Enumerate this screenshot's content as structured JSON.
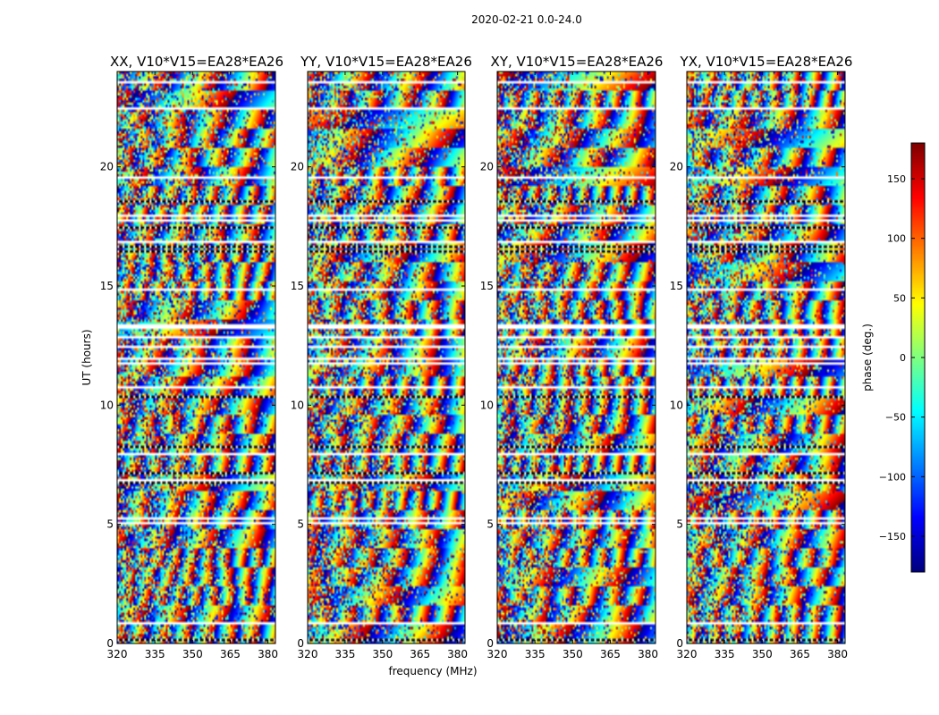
{
  "chart_data": {
    "type": "heatmap",
    "suptitle": "2020-02-21 0.0-24.0",
    "xlabel": "frequency (MHz)",
    "ylabel": "UT (hours)",
    "xlim": [
      320,
      383
    ],
    "ylim": [
      0,
      24
    ],
    "xticks": [
      320,
      335,
      350,
      365,
      380
    ],
    "yticks": [
      0,
      5,
      10,
      15,
      20
    ],
    "panels": [
      {
        "title": "XX, V10*V15=EA28*EA26"
      },
      {
        "title": "YY, V10*V15=EA28*EA26"
      },
      {
        "title": "XY, V10*V15=EA28*EA26"
      },
      {
        "title": "YX, V10*V15=EA28*EA26"
      }
    ],
    "colorbar": {
      "label": "phase (deg.)",
      "range": [
        -180,
        180
      ],
      "ticks": [
        -150,
        -100,
        -50,
        0,
        50,
        100,
        150
      ],
      "colormap": "jet"
    }
  }
}
